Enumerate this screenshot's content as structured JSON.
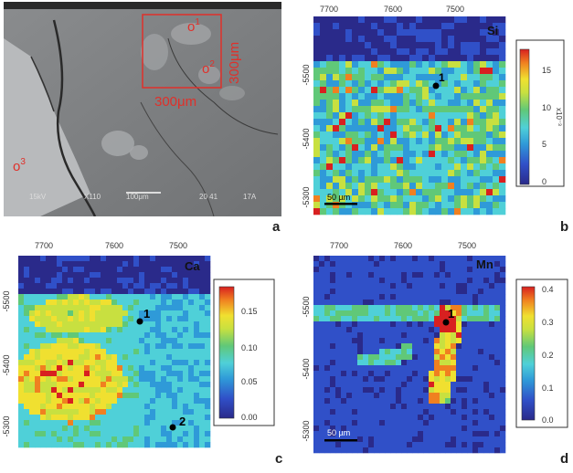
{
  "panels": {
    "a": {
      "letter": "a",
      "sem_info": [
        "15kV",
        "X110",
        "100μm",
        "20 41",
        "17A"
      ],
      "point_1": "o",
      "point_1_sup": "1",
      "point_2": "o",
      "point_2_sup": "2",
      "point_3": "o",
      "point_3_sup": "3",
      "scan_width_label": "300μm",
      "scan_height_label": "300μm",
      "box_color": "#e0302a"
    },
    "b": {
      "letter": "b",
      "element": "Si",
      "x_ticks": [
        "7700",
        "7600",
        "7500"
      ],
      "y_ticks": [
        "-5500",
        "-5400",
        "-5300"
      ],
      "colorbar_ticks": [
        "15",
        "10",
        "5",
        "0"
      ],
      "colorbar_unit": "x10⁻³",
      "point_label": "1",
      "scalebar": "50 µm"
    },
    "c": {
      "letter": "c",
      "element": "Ca",
      "x_ticks": [
        "7700",
        "7600",
        "7500"
      ],
      "y_ticks": [
        "-5500",
        "-5400",
        "-5300"
      ],
      "colorbar_ticks": [
        "0.15",
        "0.10",
        "0.05",
        "0.00"
      ],
      "point_labels": [
        "1",
        "2"
      ]
    },
    "d": {
      "letter": "d",
      "element": "Mn",
      "x_ticks": [
        "7700",
        "7600",
        "7500"
      ],
      "y_ticks": [
        "-5500",
        "-5400",
        "-5300"
      ],
      "colorbar_ticks": [
        "0.4",
        "0.3",
        "0.2",
        "0.1",
        "0.0"
      ],
      "point_label": "1",
      "scalebar": "50 µm"
    }
  },
  "colors": {
    "colormap": [
      "#2a2a8a",
      "#3050c8",
      "#2f9ad8",
      "#4fd0d8",
      "#60c878",
      "#c8e040",
      "#f0e030",
      "#f08020",
      "#d82020"
    ],
    "background_blue": "#3a3f9a"
  }
}
